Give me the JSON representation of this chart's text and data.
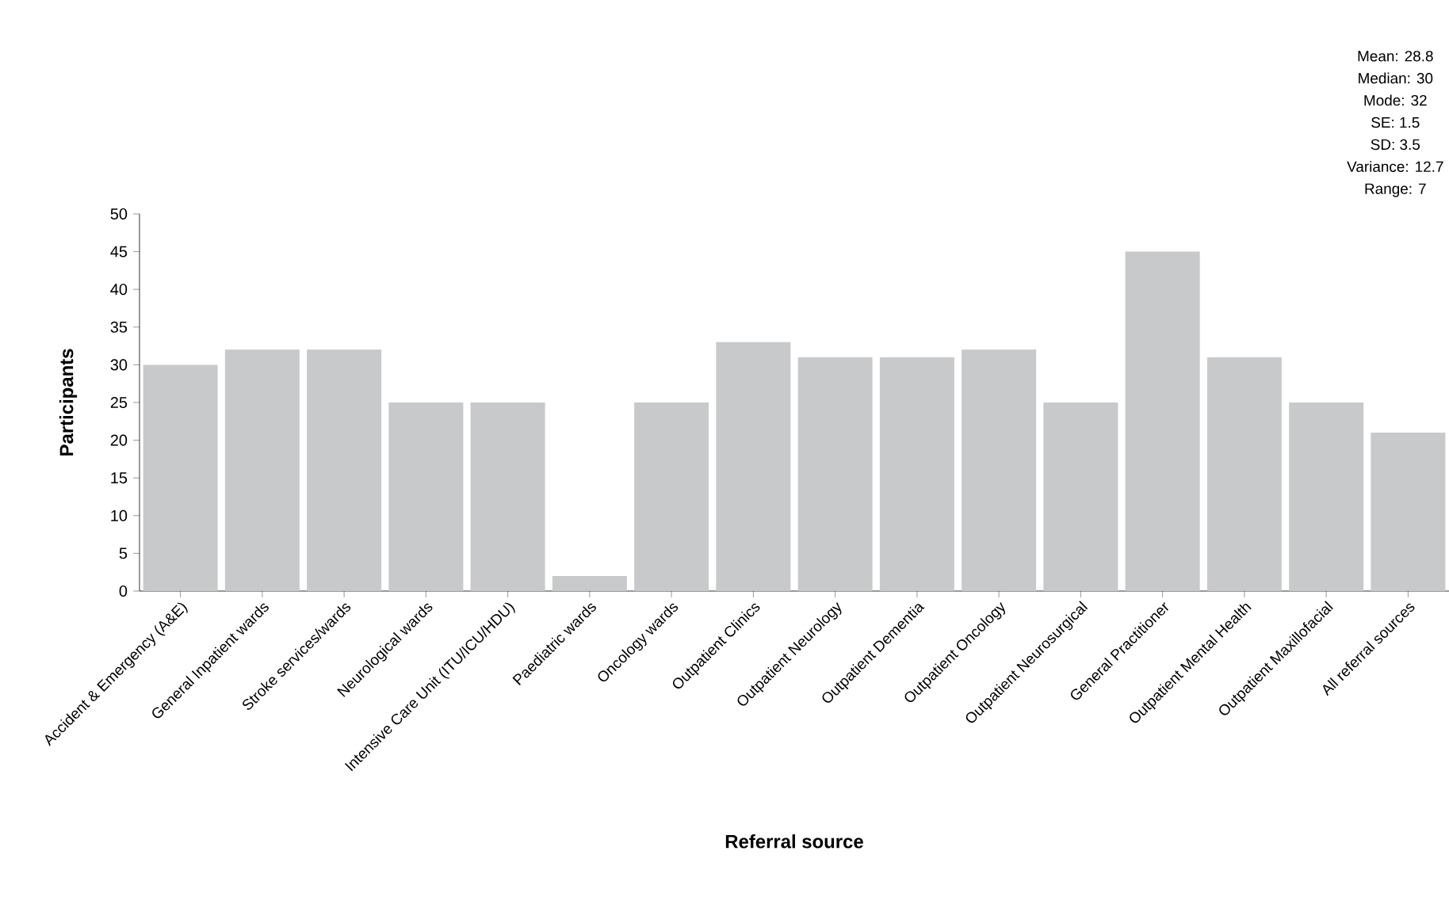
{
  "chart_data": {
    "type": "bar",
    "xlabel": "Referral source",
    "ylabel": "Participants",
    "categories": [
      "Accident & Emergency (A&E)",
      "General Inpatient wards",
      "Stroke services/wards",
      "Neurological wards",
      "Intensive Care Unit (ITU/ICU/HDU)",
      "Paediatric wards",
      "Oncology wards",
      "Outpatient Clinics",
      "Outpatient Neurology",
      "Outpatient Dementia",
      "Outpatient Oncology",
      "Outpatient Neurosurgical",
      "General Practitioner",
      "Outpatient Mental Health",
      "Outpatient Maxillofacial",
      "All referral sources"
    ],
    "values": [
      30,
      32,
      32,
      25,
      25,
      2,
      25,
      33,
      31,
      31,
      32,
      25,
      45,
      31,
      25,
      21
    ],
    "color": "#c8c9cb",
    "ylim": [
      0,
      50
    ],
    "yticks": [
      0,
      5,
      10,
      15,
      20,
      25,
      30,
      35,
      40,
      45,
      50
    ],
    "grid": false,
    "annotations": [
      "Mean: 28.8",
      "Median: 30",
      "Mode: 32",
      "SE: 1.5",
      "SD: 3.5",
      "Variance: 12.7",
      "Range: 7"
    ]
  }
}
